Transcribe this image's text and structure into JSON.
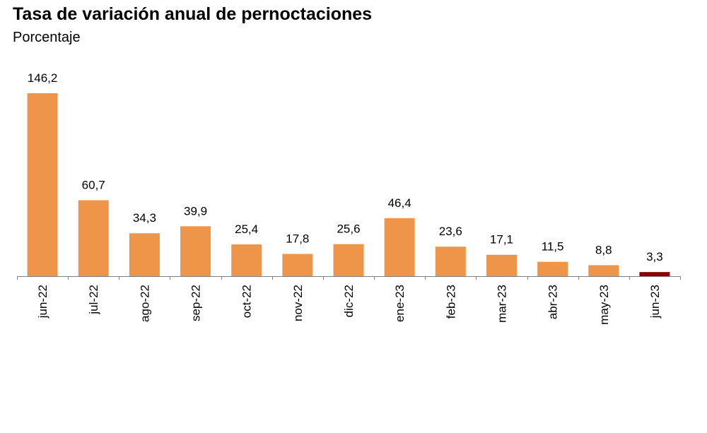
{
  "title": "Tasa de variación anual de pernoctaciones",
  "subtitle": "Porcentaje",
  "chart_data": {
    "type": "bar",
    "title": "Tasa de variación anual de pernoctaciones",
    "ylabel": "Porcentaje",
    "categories": [
      "jun-22",
      "jul-22",
      "ago-22",
      "sep-22",
      "oct-22",
      "nov-22",
      "dic-22",
      "ene-23",
      "feb-23",
      "mar-23",
      "abr-23",
      "may-23",
      "jun-23"
    ],
    "values": [
      146.2,
      60.7,
      34.3,
      39.9,
      25.4,
      17.8,
      25.6,
      46.4,
      23.6,
      17.1,
      11.5,
      8.8,
      3.3
    ],
    "data_labels": [
      "146,2",
      "60,7",
      "34,3",
      "39,9",
      "25,4",
      "17,8",
      "25,6",
      "46,4",
      "23,6",
      "17,1",
      "11,5",
      "8,8",
      "3,3"
    ],
    "ylim": [
      0,
      146.2
    ],
    "grid": false,
    "colors": {
      "bar": "#ee9549",
      "highlight": "#8b0000",
      "axis": "#7f7f7f"
    },
    "highlight_index": 12
  }
}
